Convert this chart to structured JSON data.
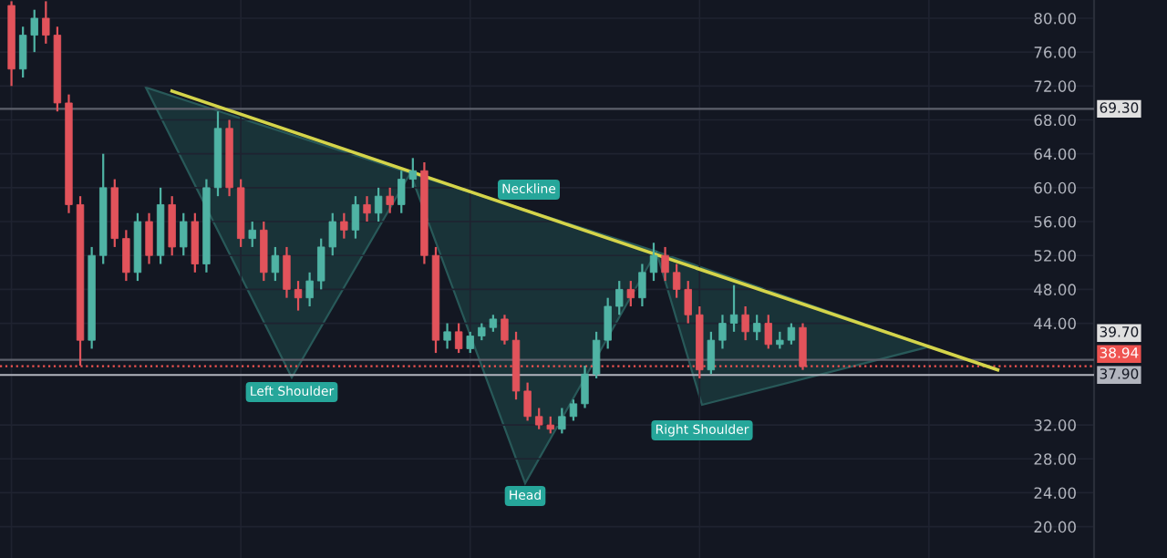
{
  "chart_data": {
    "type": "candlestick",
    "categories": [
      null,
      null,
      null,
      null,
      null,
      null,
      null,
      null,
      null,
      null,
      null,
      null,
      null,
      null,
      null,
      null,
      null,
      null,
      null,
      null,
      null,
      null,
      null,
      null,
      null,
      null,
      null,
      null,
      null,
      null,
      null,
      null,
      null,
      null,
      null,
      null,
      null,
      null,
      null,
      null,
      null,
      null,
      null,
      null,
      null,
      null,
      null,
      null,
      null,
      null,
      null,
      null,
      null,
      null,
      null,
      null,
      null,
      null,
      null,
      null,
      null,
      null,
      null,
      null,
      null,
      null,
      null,
      null,
      null,
      null,
      null,
      null,
      null,
      null,
      null,
      null,
      null,
      null,
      null,
      null,
      null,
      null,
      null,
      null,
      null,
      null,
      null
    ],
    "ohlc": [
      [
        81.5,
        82,
        72,
        74
      ],
      [
        74,
        79,
        73,
        78
      ],
      [
        78,
        81,
        76,
        80
      ],
      [
        80,
        82,
        77,
        78
      ],
      [
        78,
        79,
        69,
        70
      ],
      [
        70,
        71,
        57,
        58
      ],
      [
        58,
        59,
        39,
        42
      ],
      [
        42,
        53,
        41,
        52
      ],
      [
        52,
        64,
        51,
        60
      ],
      [
        60,
        61,
        53,
        54
      ],
      [
        54,
        55,
        49,
        50
      ],
      [
        50,
        57,
        49,
        56
      ],
      [
        56,
        57,
        51,
        52
      ],
      [
        52,
        60,
        51,
        58
      ],
      [
        58,
        59,
        52,
        53
      ],
      [
        53,
        57,
        52,
        56
      ],
      [
        56,
        57,
        50,
        51
      ],
      [
        51,
        61,
        50,
        60
      ],
      [
        60,
        69,
        59,
        67
      ],
      [
        67,
        68,
        59,
        60
      ],
      [
        60,
        61,
        53,
        54
      ],
      [
        54,
        56,
        53,
        55
      ],
      [
        55,
        56,
        49,
        50
      ],
      [
        50,
        53,
        49,
        52
      ],
      [
        52,
        53,
        47,
        48
      ],
      [
        48,
        49,
        45.5,
        47
      ],
      [
        47,
        50,
        46,
        49
      ],
      [
        49,
        54,
        48,
        53
      ],
      [
        53,
        57,
        52,
        56
      ],
      [
        56,
        57,
        54,
        55
      ],
      [
        55,
        59,
        54,
        58
      ],
      [
        58,
        59,
        56,
        57
      ],
      [
        57,
        60,
        56,
        59
      ],
      [
        59,
        60,
        57,
        58
      ],
      [
        58,
        62,
        57,
        61
      ],
      [
        61,
        63.5,
        60,
        62
      ],
      [
        62,
        63,
        51,
        52
      ],
      [
        52,
        53,
        40.5,
        42
      ],
      [
        42,
        44,
        41,
        43
      ],
      [
        43,
        44,
        40.5,
        41
      ],
      [
        41,
        43,
        40.5,
        42.5
      ],
      [
        42.5,
        44,
        42,
        43.5
      ],
      [
        43.5,
        45,
        43,
        44.5
      ],
      [
        44.5,
        45,
        41.5,
        42
      ],
      [
        42,
        43,
        35,
        36
      ],
      [
        36,
        37,
        32.5,
        33
      ],
      [
        33,
        34,
        31.5,
        32
      ],
      [
        32,
        33,
        31,
        31.5
      ],
      [
        31.5,
        34,
        31,
        33
      ],
      [
        33,
        35,
        32.5,
        34.5
      ],
      [
        34.5,
        39,
        34,
        38
      ],
      [
        38,
        43,
        37.5,
        42
      ],
      [
        42,
        47,
        41,
        46
      ],
      [
        46,
        49,
        45,
        48
      ],
      [
        48,
        49,
        46,
        47
      ],
      [
        47,
        51,
        46,
        50
      ],
      [
        50,
        53.5,
        49,
        52
      ],
      [
        52,
        53,
        49,
        50
      ],
      [
        50,
        51,
        47,
        48
      ],
      [
        48,
        49,
        44,
        45
      ],
      [
        45,
        46,
        37.5,
        38.5
      ],
      [
        38.5,
        43,
        38,
        42
      ],
      [
        42,
        45,
        41,
        44
      ],
      [
        44,
        48.5,
        43,
        45
      ],
      [
        45,
        46,
        42,
        43
      ],
      [
        43,
        45,
        42,
        44
      ],
      [
        44,
        45,
        41,
        41.5
      ],
      [
        41.5,
        43,
        41,
        42
      ],
      [
        42,
        44,
        41.5,
        43.5
      ],
      [
        43.5,
        44,
        38.5,
        38.9
      ],
      null,
      null,
      null,
      null,
      null,
      null,
      null,
      null,
      null,
      null,
      null,
      null,
      null,
      null,
      null,
      null,
      null
    ],
    "series": [
      {
        "type": "line",
        "values": [
          null,
          null,
          null,
          null,
          null,
          null,
          null,
          null,
          null,
          null,
          null,
          null,
          null,
          null,
          71.4,
          null,
          null,
          null,
          null,
          null,
          null,
          null,
          null,
          null,
          null,
          null,
          null,
          null,
          null,
          null,
          null,
          null,
          null,
          null,
          null,
          null,
          null,
          null,
          null,
          null,
          null,
          null,
          null,
          null,
          null,
          null,
          null,
          null,
          null,
          null,
          null,
          null,
          null,
          null,
          null,
          null,
          null,
          null,
          null,
          null,
          null,
          null,
          null,
          null,
          null,
          null,
          null,
          null,
          null,
          null,
          null,
          null,
          null,
          null,
          null,
          null,
          null,
          null,
          null,
          null,
          null,
          null,
          null,
          null,
          null,
          null,
          38.5
        ],
        "color": "#d4d44a"
      }
    ],
    "ylim": [
      16.3,
      82.15
    ],
    "yticks": [
      {
        "value": 20,
        "label": "20.00"
      },
      {
        "value": 24,
        "label": "24.00"
      },
      {
        "value": 28,
        "label": "28.00"
      },
      {
        "value": 32,
        "label": "32.00"
      },
      {
        "value": 44,
        "label": "44.00"
      },
      {
        "value": 48,
        "label": "48.00"
      },
      {
        "value": 52,
        "label": "52.00"
      },
      {
        "value": 56,
        "label": "56.00"
      },
      {
        "value": 60,
        "label": "60.00"
      },
      {
        "value": 64,
        "label": "64.00"
      },
      {
        "value": 68,
        "label": "68.00"
      },
      {
        "value": 72,
        "label": "72.00"
      },
      {
        "value": 76,
        "label": "76.00"
      },
      {
        "value": 80,
        "label": "80.00"
      }
    ],
    "ref_lines": [
      {
        "axis": "y",
        "value": 69.3,
        "label": "69.30",
        "color": "#5d606b"
      },
      {
        "axis": "y",
        "value": 39.7,
        "label": "39.70",
        "color": "#5d606b"
      },
      {
        "axis": "y",
        "value": 37.9,
        "label": "37.90",
        "color": "#b2b5be"
      },
      {
        "axis": "y",
        "value": 38.94,
        "label": "38.94",
        "color": "#ef5350",
        "line_style": "dotted"
      }
    ],
    "annotations": [
      "Neckline",
      "Left Shoulder",
      "Head",
      "Right Shoulder"
    ],
    "tick_labels": "y",
    "grid": true
  }
}
